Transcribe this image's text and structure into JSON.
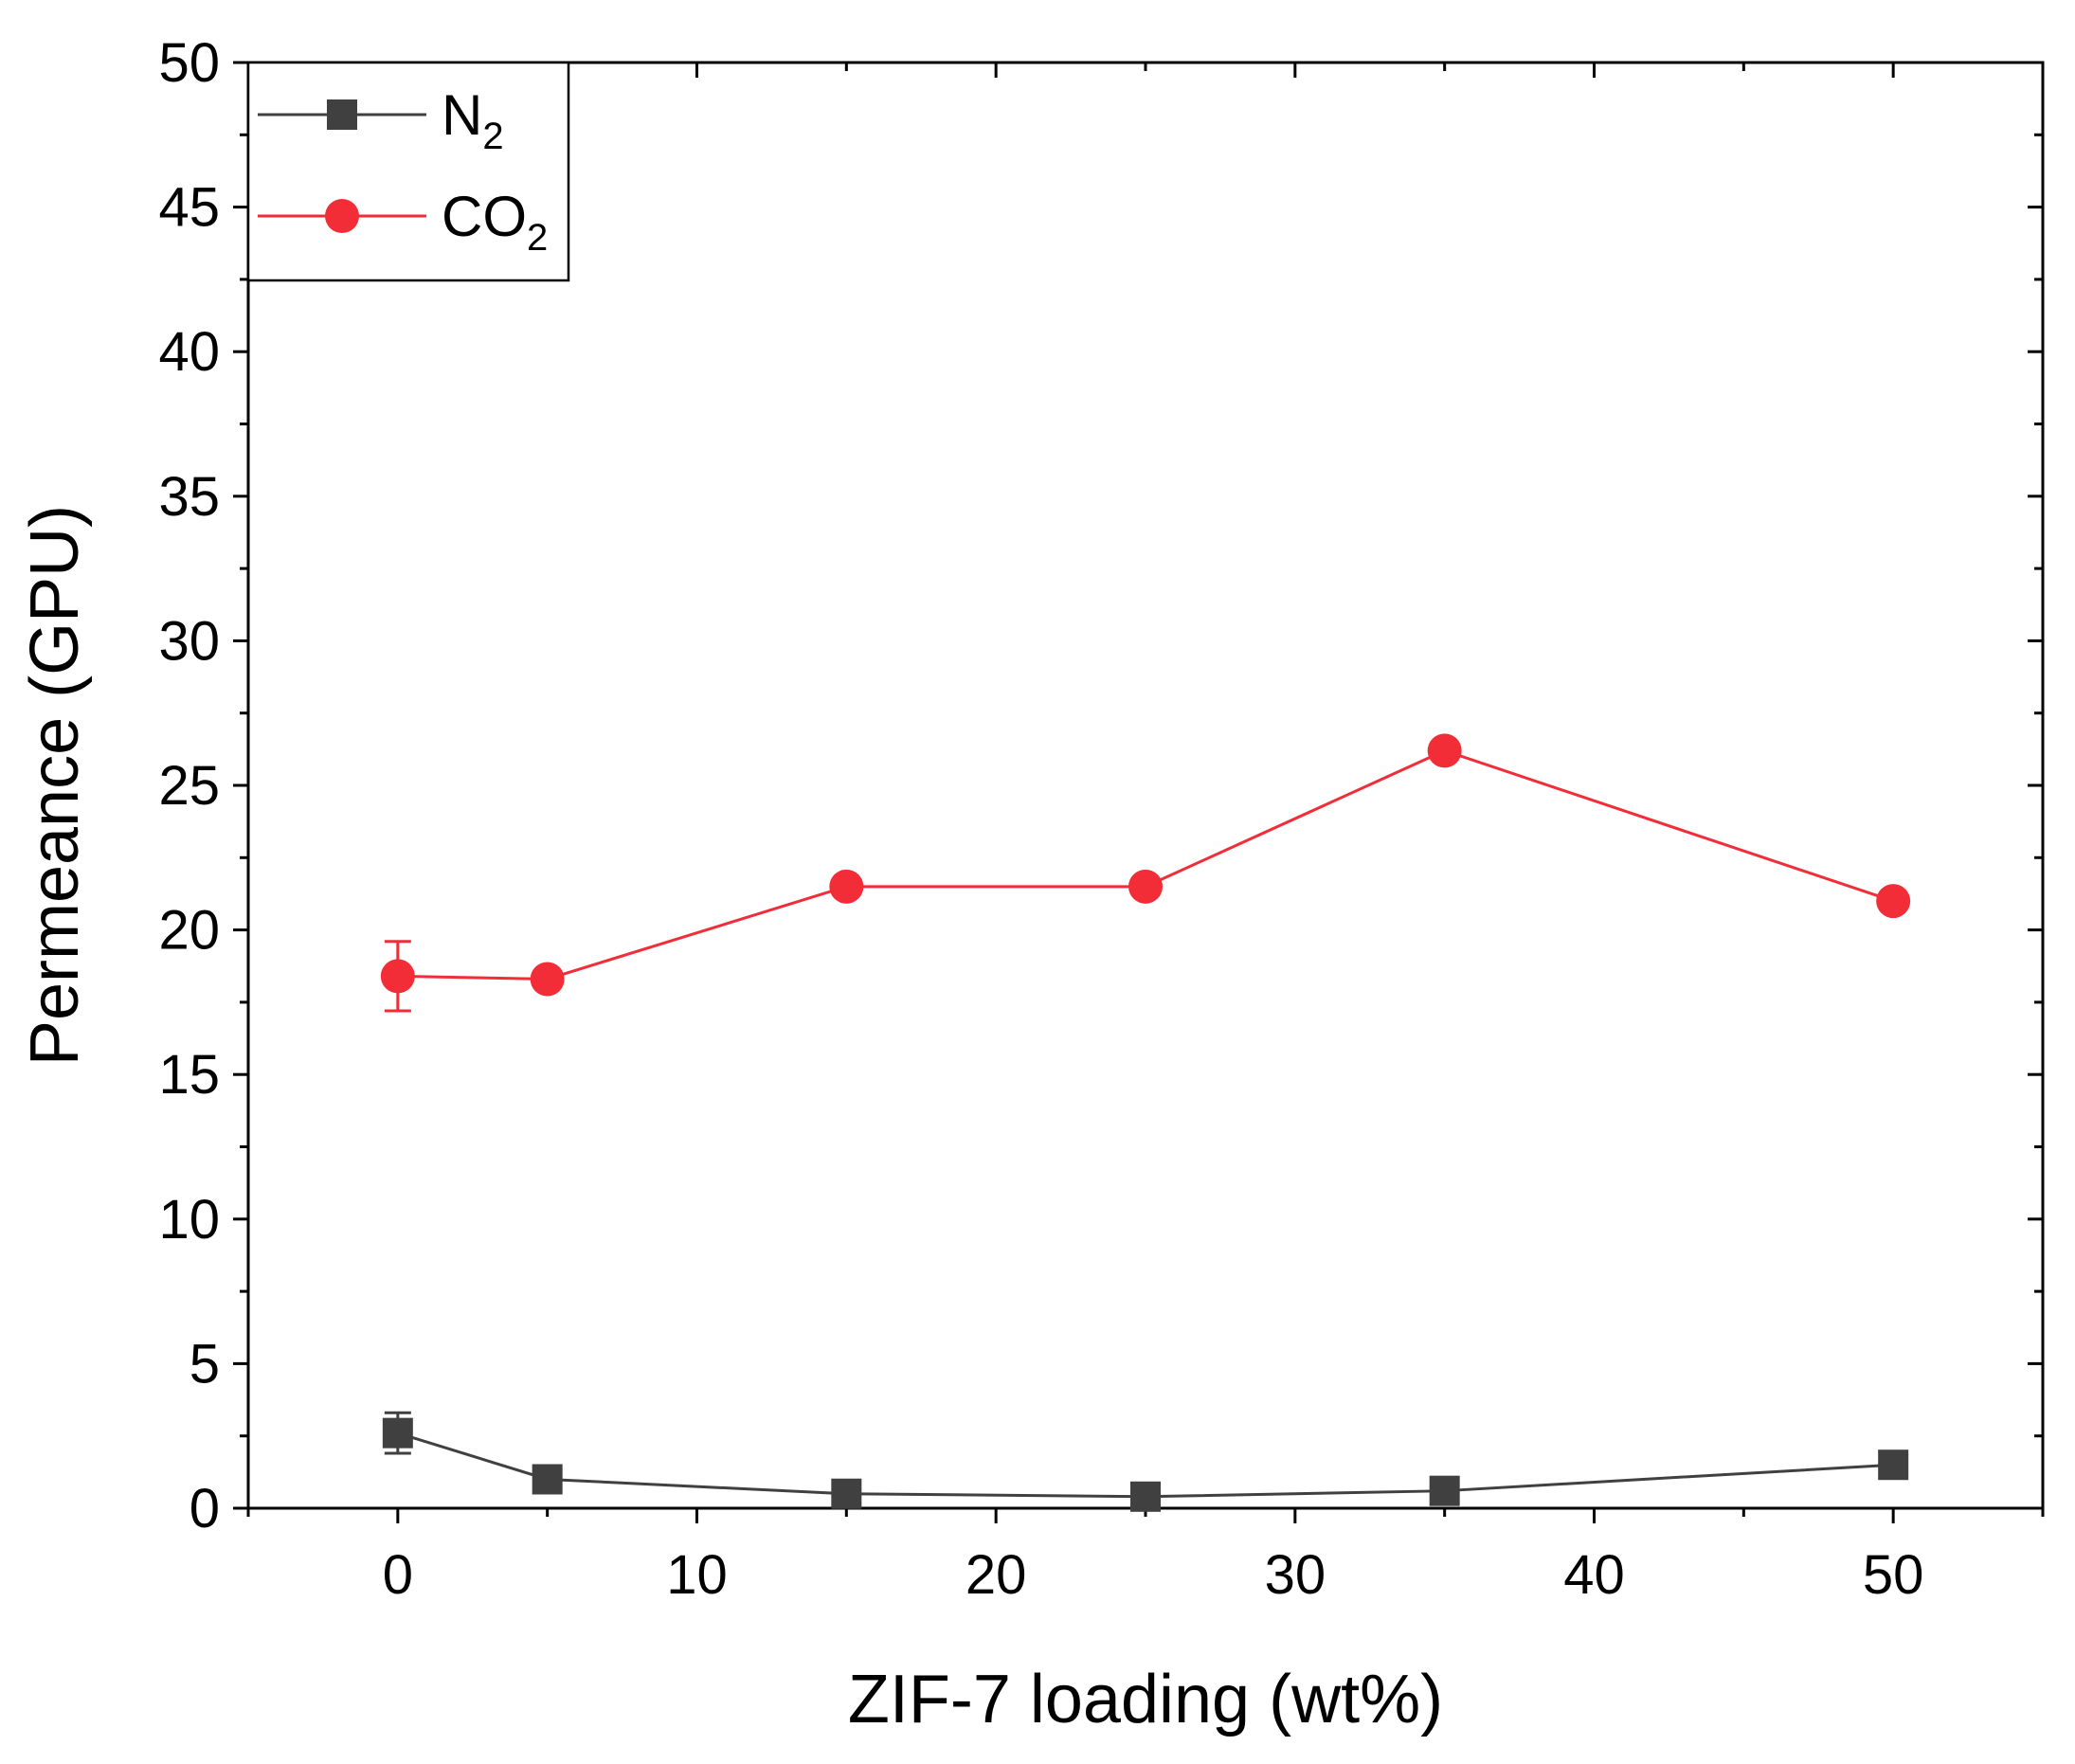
{
  "chart_data": {
    "type": "line",
    "title": "",
    "xlabel": "ZIF-7 loading (wt%)",
    "ylabel": "Permeance (GPU)",
    "xlim": [
      -5,
      55
    ],
    "ylim": [
      0,
      50
    ],
    "xticks": [
      0,
      10,
      20,
      30,
      40,
      50
    ],
    "yticks": [
      0,
      5,
      10,
      15,
      20,
      25,
      30,
      35,
      40,
      45,
      50
    ],
    "x": [
      0,
      5,
      15,
      25,
      35,
      50
    ],
    "legend_position": "top-left",
    "series": [
      {
        "name": "N",
        "name_sub": "2",
        "marker": "square",
        "color": "#404040",
        "values": [
          2.6,
          1.0,
          0.5,
          0.4,
          0.6,
          1.5
        ],
        "error": [
          0.7,
          0,
          0,
          0,
          0,
          0
        ]
      },
      {
        "name": "CO",
        "name_sub": "2",
        "marker": "circle",
        "color": "#f22d38",
        "values": [
          18.4,
          18.3,
          21.5,
          21.5,
          26.2,
          21.0
        ],
        "error": [
          1.2,
          0,
          0,
          0,
          0,
          0
        ]
      }
    ]
  }
}
